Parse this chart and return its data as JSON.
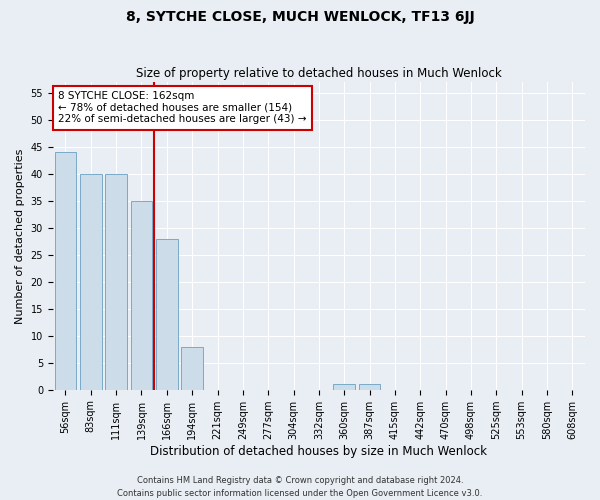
{
  "title": "8, SYTCHE CLOSE, MUCH WENLOCK, TF13 6JJ",
  "subtitle": "Size of property relative to detached houses in Much Wenlock",
  "xlabel": "Distribution of detached houses by size in Much Wenlock",
  "ylabel": "Number of detached properties",
  "categories": [
    "56sqm",
    "83sqm",
    "111sqm",
    "139sqm",
    "166sqm",
    "194sqm",
    "221sqm",
    "249sqm",
    "277sqm",
    "304sqm",
    "332sqm",
    "360sqm",
    "387sqm",
    "415sqm",
    "442sqm",
    "470sqm",
    "498sqm",
    "525sqm",
    "553sqm",
    "580sqm",
    "608sqm"
  ],
  "values": [
    44,
    40,
    40,
    35,
    28,
    8,
    0,
    0,
    0,
    0,
    0,
    1,
    1,
    0,
    0,
    0,
    0,
    0,
    0,
    0,
    0
  ],
  "bar_color": "#ccdce8",
  "bar_edge_color": "#7aaac8",
  "red_line_x": 3.5,
  "annotation_text": "8 SYTCHE CLOSE: 162sqm\n← 78% of detached houses are smaller (154)\n22% of semi-detached houses are larger (43) →",
  "annotation_box_color": "#ffffff",
  "annotation_box_edge_color": "#cc0000",
  "red_line_color": "#cc0000",
  "ylim": [
    0,
    57
  ],
  "yticks": [
    0,
    5,
    10,
    15,
    20,
    25,
    30,
    35,
    40,
    45,
    50,
    55
  ],
  "footnote1": "Contains HM Land Registry data © Crown copyright and database right 2024.",
  "footnote2": "Contains public sector information licensed under the Open Government Licence v3.0.",
  "background_color": "#e8eef4",
  "grid_color": "#ffffff",
  "title_fontsize": 10,
  "subtitle_fontsize": 8.5,
  "xlabel_fontsize": 8.5,
  "ylabel_fontsize": 8,
  "tick_fontsize": 7,
  "footnote_fontsize": 6,
  "annotation_fontsize": 7.5
}
